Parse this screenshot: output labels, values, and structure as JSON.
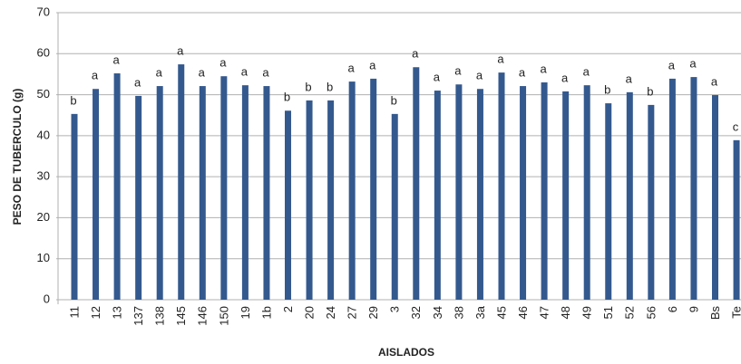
{
  "chart_data": {
    "type": "bar",
    "categories": [
      "11",
      "12",
      "13",
      "137",
      "138",
      "145",
      "146",
      "150",
      "19",
      "1b",
      "2",
      "20",
      "24",
      "27",
      "29",
      "3",
      "32",
      "34",
      "38",
      "3a",
      "45",
      "46",
      "47",
      "48",
      "49",
      "51",
      "52",
      "56",
      "6",
      "9",
      "Bs",
      "Te"
    ],
    "values": [
      45.3,
      51.4,
      55.2,
      49.7,
      52.1,
      57.4,
      52.1,
      54.5,
      52.3,
      52.1,
      46.1,
      48.6,
      48.6,
      53.2,
      53.9,
      45.3,
      56.7,
      51.0,
      52.5,
      51.4,
      55.4,
      52.1,
      53.0,
      50.8,
      52.3,
      47.9,
      50.6,
      47.5,
      53.9,
      54.3,
      49.9,
      38.9
    ],
    "annotations": [
      "b",
      "a",
      "a",
      "a",
      "a",
      "a",
      "a",
      "a",
      "a",
      "a",
      "b",
      "b",
      "b",
      "a",
      "a",
      "b",
      "a",
      "a",
      "a",
      "a",
      "a",
      "a",
      "a",
      "a",
      "a",
      "b",
      "a",
      "b",
      "a",
      "a",
      "a",
      "c"
    ],
    "color": "#34598e",
    "ylabel": "PESO DE TUBERCULO (g)",
    "xlabel": "AISLADOS",
    "ylim": [
      0,
      70
    ],
    "yticks": [
      0,
      10,
      20,
      30,
      40,
      50,
      60,
      70
    ],
    "grid": true
  }
}
